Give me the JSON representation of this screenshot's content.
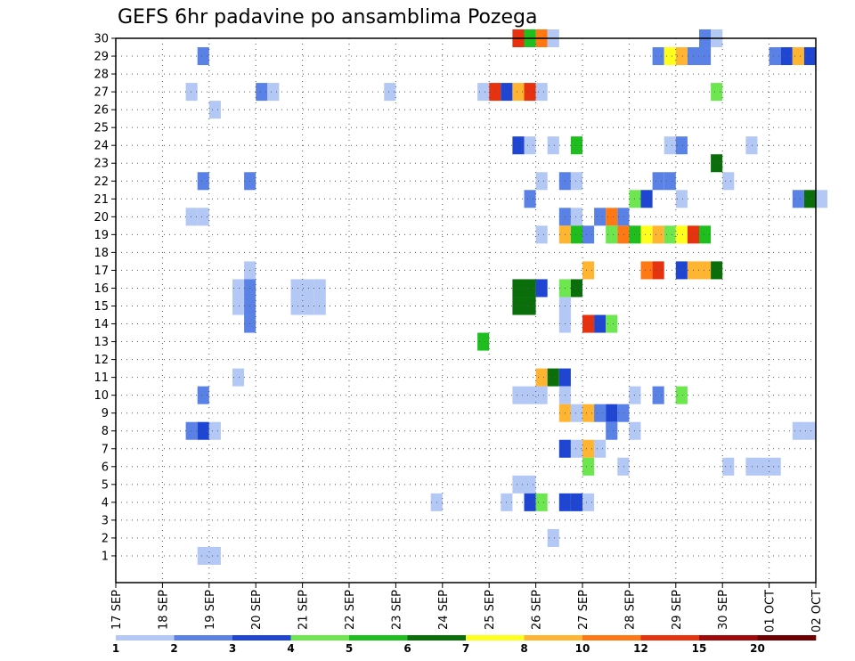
{
  "chart_data": {
    "type": "heatmap",
    "title": "GEFS 6hr padavine po ansamblima Pozega",
    "xlabel": "",
    "ylabel": "",
    "x_ticks": [
      "17 SEP",
      "18 SEP",
      "19 SEP",
      "20 SEP",
      "21 SEP",
      "22 SEP",
      "23 SEP",
      "24 SEP",
      "25 SEP",
      "26 SEP",
      "27 SEP",
      "28 SEP",
      "29 SEP",
      "30 SEP",
      "01 OCT",
      "02 OCT"
    ],
    "y_ticks": [
      1,
      2,
      3,
      4,
      5,
      6,
      7,
      8,
      9,
      10,
      11,
      12,
      13,
      14,
      15,
      16,
      17,
      18,
      19,
      20,
      21,
      22,
      23,
      24,
      25,
      26,
      27,
      28,
      29,
      30
    ],
    "x_range": [
      "17 SEP 00",
      "02 OCT 00"
    ],
    "y_range": [
      0,
      30
    ],
    "time_step_hours": 6,
    "grid": true,
    "legend_position": "bottom",
    "colorbar": {
      "levels": [
        "1",
        "2",
        "3",
        "4",
        "5",
        "6",
        "7",
        "8",
        "10",
        "12",
        "15",
        "20"
      ],
      "colors": [
        "#b4c8f5",
        "#5a82e6",
        "#1e46d2",
        "#6ee650",
        "#1ebe1e",
        "#0a6e0a",
        "#ffff1e",
        "#ffb432",
        "#ff7814",
        "#e6320f",
        "#a00a0a",
        "#6e0000"
      ]
    },
    "cells": [
      [
        30,
        "25 SEP 12",
        9
      ],
      [
        30,
        "25 SEP 18",
        4
      ],
      [
        30,
        "26 SEP 00",
        8
      ],
      [
        30,
        "26 SEP 06",
        0
      ],
      [
        30,
        "29 SEP 12",
        1
      ],
      [
        30,
        "29 SEP 18",
        0
      ],
      [
        29,
        "18 SEP 18",
        1
      ],
      [
        29,
        "28 SEP 12",
        1
      ],
      [
        29,
        "28 SEP 18",
        6
      ],
      [
        29,
        "29 SEP 00",
        7
      ],
      [
        29,
        "29 SEP 06",
        1
      ],
      [
        29,
        "29 SEP 12",
        1
      ],
      [
        29,
        "01 OCT 00",
        1
      ],
      [
        29,
        "01 OCT 06",
        2
      ],
      [
        29,
        "01 OCT 12",
        7
      ],
      [
        29,
        "01 OCT 18",
        2
      ],
      [
        27,
        "18 SEP 12",
        0
      ],
      [
        27,
        "20 SEP 00",
        1
      ],
      [
        27,
        "20 SEP 06",
        0
      ],
      [
        27,
        "22 SEP 18",
        0
      ],
      [
        27,
        "24 SEP 18",
        0
      ],
      [
        27,
        "25 SEP 00",
        9
      ],
      [
        27,
        "25 SEP 06",
        2
      ],
      [
        27,
        "25 SEP 12",
        7
      ],
      [
        27,
        "25 SEP 18",
        9
      ],
      [
        27,
        "26 SEP 00",
        0
      ],
      [
        27,
        "29 SEP 18",
        3
      ],
      [
        26,
        "19 SEP 00",
        0
      ],
      [
        24,
        "25 SEP 12",
        2
      ],
      [
        24,
        "25 SEP 18",
        0
      ],
      [
        24,
        "26 SEP 06",
        0
      ],
      [
        24,
        "26 SEP 18",
        4
      ],
      [
        24,
        "28 SEP 18",
        0
      ],
      [
        24,
        "29 SEP 00",
        1
      ],
      [
        24,
        "30 SEP 12",
        0
      ],
      [
        23,
        "29 SEP 18",
        5
      ],
      [
        22,
        "18 SEP 18",
        1
      ],
      [
        22,
        "19 SEP 18",
        1
      ],
      [
        22,
        "26 SEP 00",
        0
      ],
      [
        22,
        "26 SEP 12",
        1
      ],
      [
        22,
        "26 SEP 18",
        0
      ],
      [
        22,
        "28 SEP 12",
        1
      ],
      [
        22,
        "28 SEP 18",
        1
      ],
      [
        22,
        "30 SEP 00",
        0
      ],
      [
        21,
        "25 SEP 18",
        1
      ],
      [
        21,
        "28 SEP 00",
        3
      ],
      [
        21,
        "28 SEP 06",
        2
      ],
      [
        21,
        "29 SEP 00",
        0
      ],
      [
        21,
        "01 OCT 12",
        1
      ],
      [
        21,
        "01 OCT 18",
        5
      ],
      [
        21,
        "02 OCT 00",
        0
      ],
      [
        20,
        "18 SEP 12",
        0
      ],
      [
        20,
        "18 SEP 18",
        0
      ],
      [
        20,
        "26 SEP 12",
        1
      ],
      [
        20,
        "26 SEP 18",
        0
      ],
      [
        20,
        "27 SEP 06",
        1
      ],
      [
        20,
        "27 SEP 12",
        8
      ],
      [
        20,
        "27 SEP 18",
        1
      ],
      [
        19,
        "26 SEP 00",
        0
      ],
      [
        19,
        "26 SEP 12",
        7
      ],
      [
        19,
        "26 SEP 18",
        4
      ],
      [
        19,
        "27 SEP 00",
        1
      ],
      [
        19,
        "27 SEP 12",
        3
      ],
      [
        19,
        "27 SEP 18",
        8
      ],
      [
        19,
        "28 SEP 00",
        4
      ],
      [
        19,
        "28 SEP 06",
        6
      ],
      [
        19,
        "28 SEP 12",
        7
      ],
      [
        19,
        "28 SEP 18",
        3
      ],
      [
        19,
        "29 SEP 00",
        6
      ],
      [
        19,
        "29 SEP 06",
        9
      ],
      [
        19,
        "29 SEP 12",
        4
      ],
      [
        17,
        "19 SEP 18",
        0
      ],
      [
        17,
        "27 SEP 00",
        7
      ],
      [
        17,
        "28 SEP 06",
        8
      ],
      [
        17,
        "28 SEP 12",
        9
      ],
      [
        17,
        "29 SEP 00",
        2
      ],
      [
        17,
        "29 SEP 06",
        7
      ],
      [
        17,
        "29 SEP 12",
        7
      ],
      [
        17,
        "29 SEP 18",
        5
      ],
      [
        16,
        "19 SEP 12",
        0
      ],
      [
        16,
        "19 SEP 18",
        1
      ],
      [
        16,
        "20 SEP 18",
        0
      ],
      [
        16,
        "21 SEP 00",
        0
      ],
      [
        16,
        "21 SEP 06",
        0
      ],
      [
        16,
        "25 SEP 12",
        5
      ],
      [
        16,
        "25 SEP 18",
        5
      ],
      [
        16,
        "26 SEP 00",
        2
      ],
      [
        16,
        "26 SEP 12",
        3
      ],
      [
        16,
        "26 SEP 18",
        5
      ],
      [
        15,
        "19 SEP 12",
        0
      ],
      [
        15,
        "19 SEP 18",
        1
      ],
      [
        15,
        "20 SEP 18",
        0
      ],
      [
        15,
        "21 SEP 00",
        0
      ],
      [
        15,
        "21 SEP 06",
        0
      ],
      [
        15,
        "25 SEP 12",
        5
      ],
      [
        15,
        "25 SEP 18",
        5
      ],
      [
        15,
        "26 SEP 12",
        0
      ],
      [
        14,
        "19 SEP 18",
        1
      ],
      [
        14,
        "26 SEP 12",
        0
      ],
      [
        14,
        "27 SEP 00",
        9
      ],
      [
        14,
        "27 SEP 06",
        2
      ],
      [
        14,
        "27 SEP 12",
        3
      ],
      [
        13,
        "24 SEP 18",
        4
      ],
      [
        11,
        "19 SEP 12",
        0
      ],
      [
        11,
        "26 SEP 00",
        7
      ],
      [
        11,
        "26 SEP 06",
        5
      ],
      [
        11,
        "26 SEP 12",
        2
      ],
      [
        10,
        "18 SEP 18",
        1
      ],
      [
        10,
        "25 SEP 12",
        0
      ],
      [
        10,
        "25 SEP 18",
        0
      ],
      [
        10,
        "26 SEP 00",
        0
      ],
      [
        10,
        "26 SEP 12",
        0
      ],
      [
        10,
        "28 SEP 00",
        0
      ],
      [
        10,
        "28 SEP 12",
        1
      ],
      [
        10,
        "29 SEP 00",
        3
      ],
      [
        9,
        "26 SEP 12",
        7
      ],
      [
        9,
        "26 SEP 18",
        0
      ],
      [
        9,
        "27 SEP 00",
        7
      ],
      [
        9,
        "27 SEP 06",
        1
      ],
      [
        9,
        "27 SEP 12",
        2
      ],
      [
        9,
        "27 SEP 18",
        1
      ],
      [
        8,
        "18 SEP 12",
        1
      ],
      [
        8,
        "18 SEP 18",
        2
      ],
      [
        8,
        "19 SEP 00",
        0
      ],
      [
        8,
        "27 SEP 12",
        1
      ],
      [
        8,
        "28 SEP 00",
        0
      ],
      [
        8,
        "01 OCT 12",
        0
      ],
      [
        8,
        "01 OCT 18",
        0
      ],
      [
        7,
        "26 SEP 12",
        2
      ],
      [
        7,
        "26 SEP 18",
        0
      ],
      [
        7,
        "27 SEP 00",
        7
      ],
      [
        7,
        "27 SEP 06",
        0
      ],
      [
        6,
        "27 SEP 00",
        3
      ],
      [
        6,
        "27 SEP 18",
        0
      ],
      [
        6,
        "30 SEP 00",
        0
      ],
      [
        6,
        "30 SEP 12",
        0
      ],
      [
        6,
        "30 SEP 18",
        0
      ],
      [
        6,
        "01 OCT 00",
        0
      ],
      [
        5,
        "25 SEP 12",
        0
      ],
      [
        5,
        "25 SEP 18",
        0
      ],
      [
        4,
        "23 SEP 18",
        0
      ],
      [
        4,
        "25 SEP 06",
        0
      ],
      [
        4,
        "25 SEP 18",
        2
      ],
      [
        4,
        "26 SEP 00",
        3
      ],
      [
        4,
        "26 SEP 12",
        2
      ],
      [
        4,
        "26 SEP 18",
        2
      ],
      [
        4,
        "27 SEP 00",
        0
      ],
      [
        2,
        "26 SEP 06",
        0
      ],
      [
        1,
        "18 SEP 18",
        0
      ],
      [
        1,
        "19 SEP 00",
        0
      ]
    ]
  }
}
